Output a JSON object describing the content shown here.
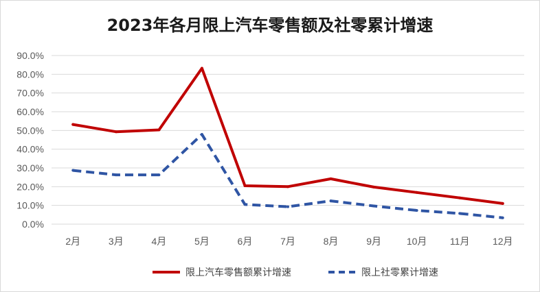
{
  "chart_data": {
    "type": "line",
    "title": "2023年各月限上汽车零售额及社零累计增速",
    "categories": [
      "2月",
      "3月",
      "4月",
      "5月",
      "6月",
      "7月",
      "8月",
      "9月",
      "10月",
      "11月",
      "12月"
    ],
    "ylim": [
      0,
      90
    ],
    "yticks": [
      "0.0%",
      "10.0%",
      "20.0%",
      "30.0%",
      "40.0%",
      "50.0%",
      "60.0%",
      "70.0%",
      "80.0%",
      "90.0%"
    ],
    "grid": true,
    "legend_position": "bottom",
    "series": [
      {
        "name": "限上汽车零售额累计增速",
        "color": "#c00000",
        "style": "solid",
        "values": [
          53.2,
          49.3,
          50.3,
          83.2,
          20.5,
          20.0,
          24.2,
          19.8,
          16.9,
          14.0,
          11.0
        ]
      },
      {
        "name": "限上社零累计增速",
        "color": "#2f55a4",
        "style": "dashed",
        "values": [
          28.7,
          26.3,
          26.3,
          47.9,
          10.5,
          9.3,
          12.4,
          9.7,
          7.3,
          5.7,
          3.4
        ]
      }
    ]
  }
}
